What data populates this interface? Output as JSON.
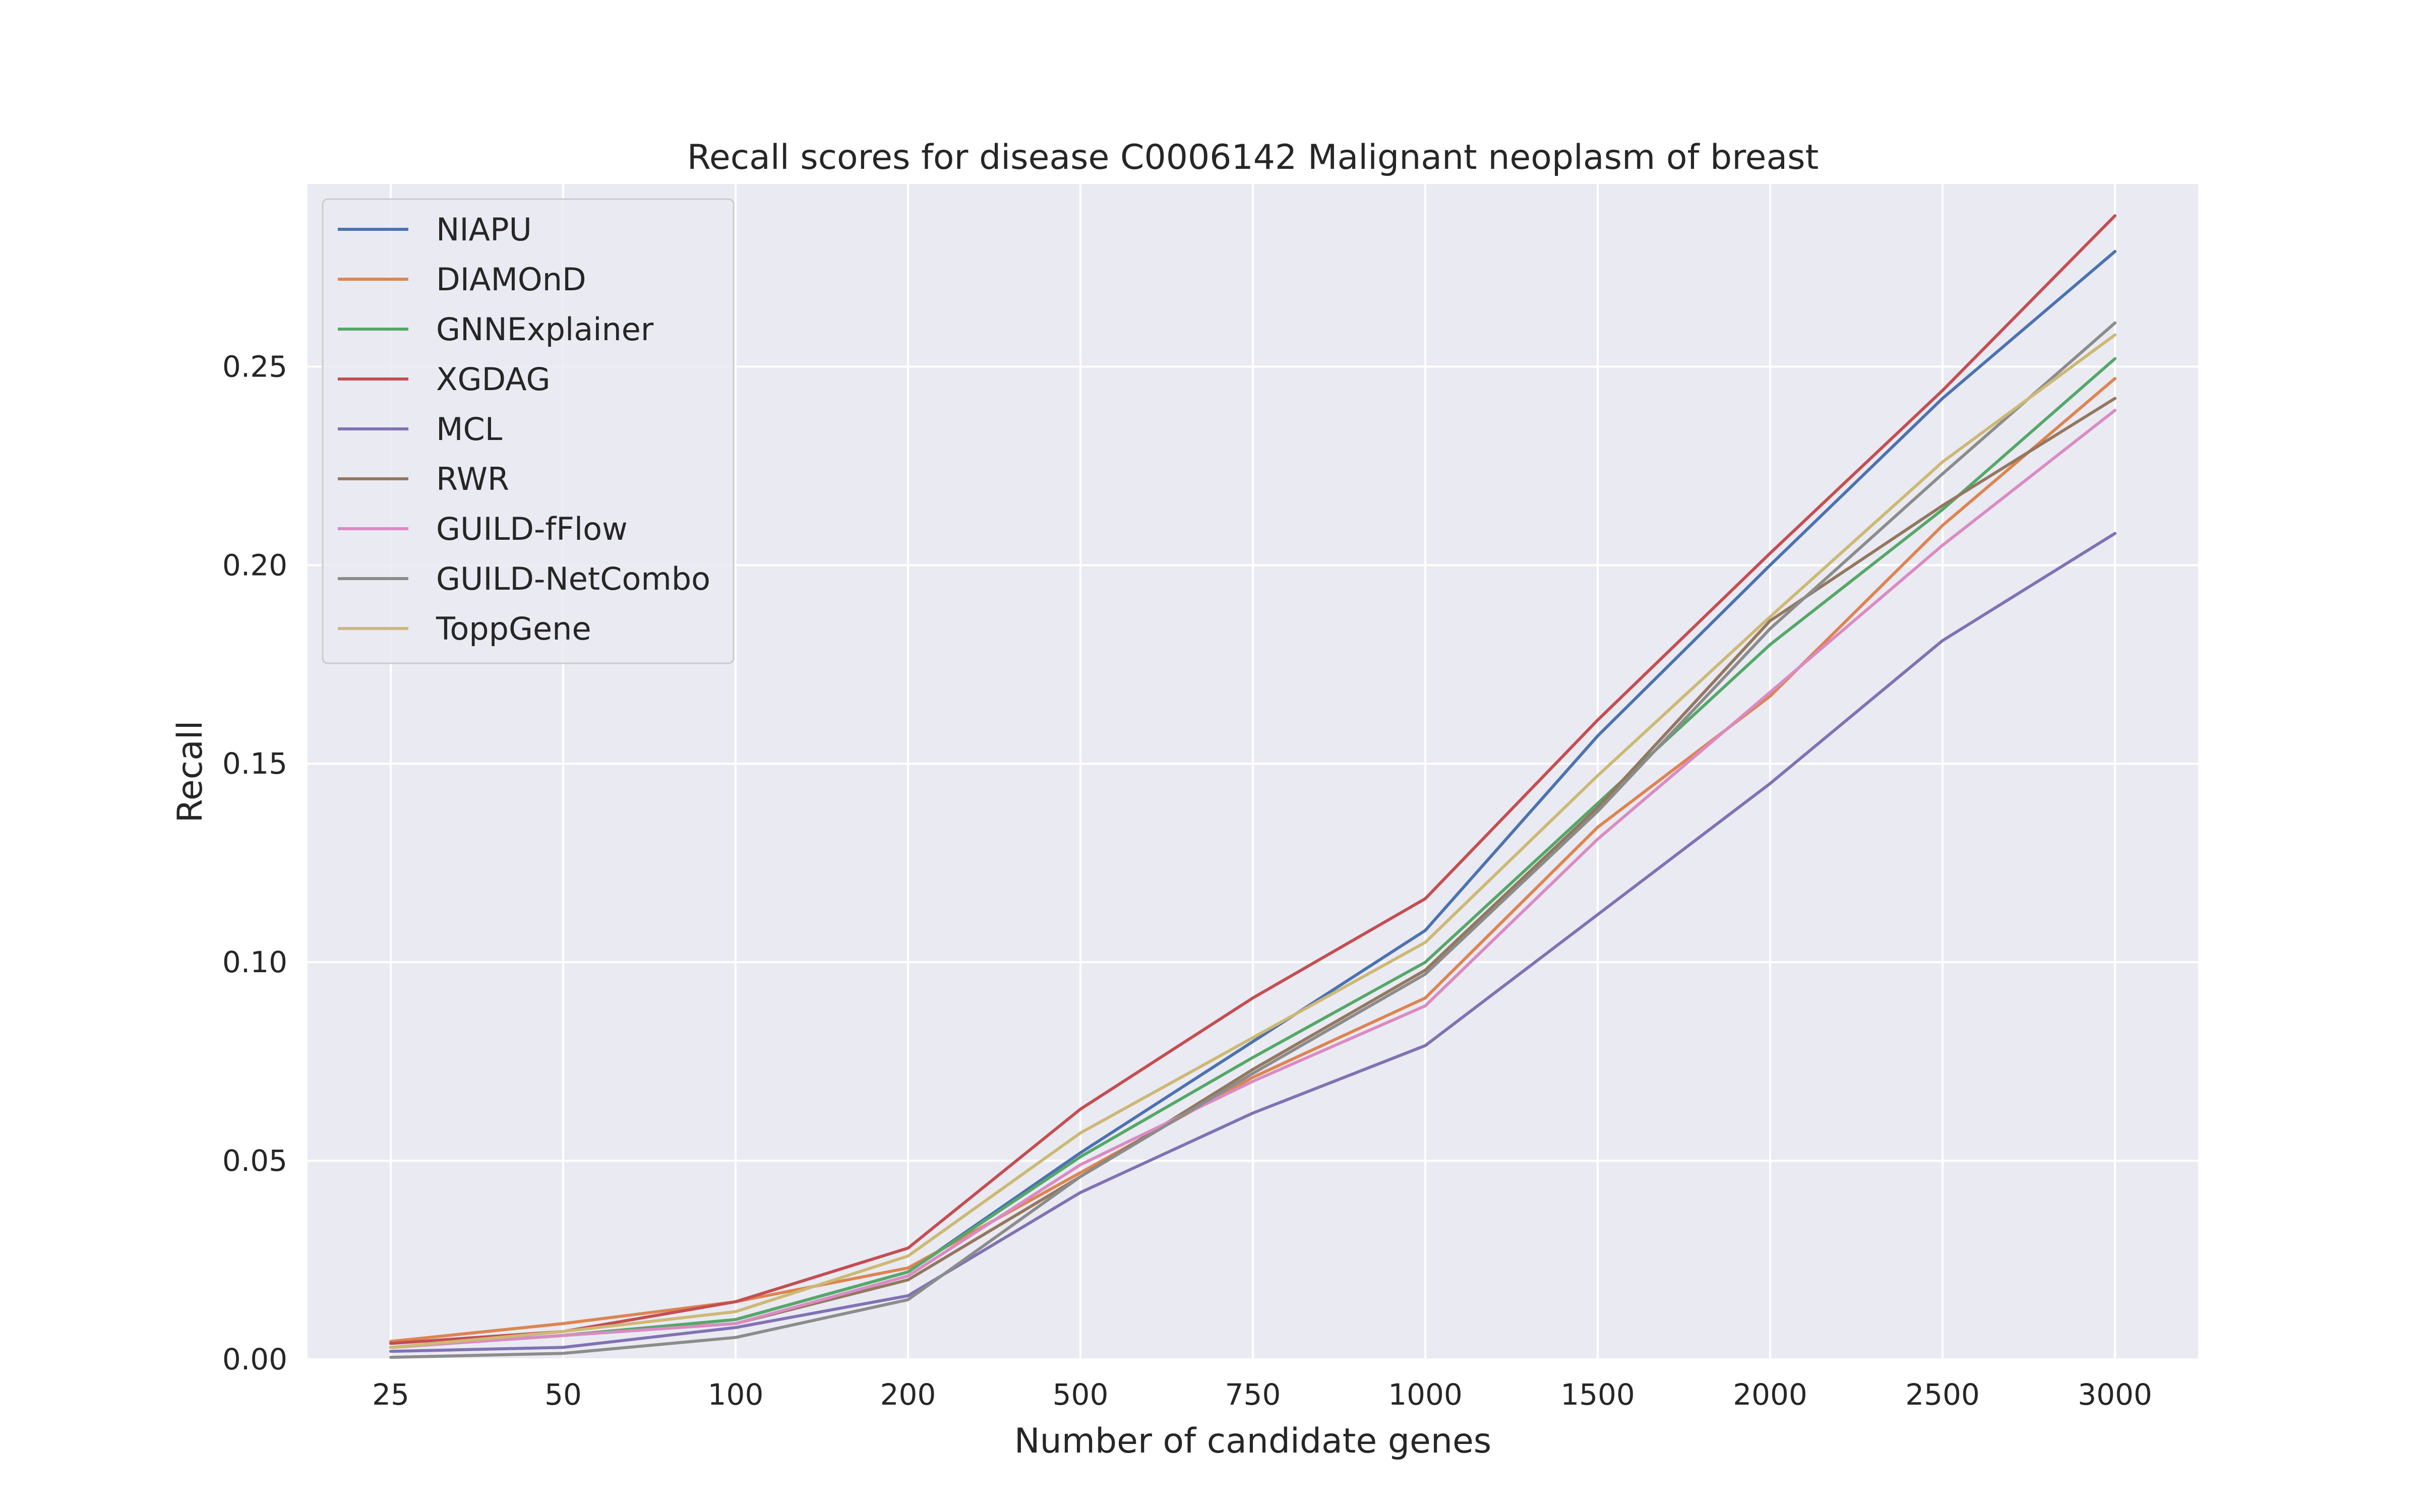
{
  "chart_data": {
    "type": "line",
    "title": "Recall scores for disease C0006142 Malignant neoplasm of breast",
    "xlabel": "Number of candidate genes",
    "ylabel": "Recall",
    "categories": [
      "25",
      "50",
      "100",
      "200",
      "500",
      "750",
      "1000",
      "1500",
      "2000",
      "2500",
      "3000"
    ],
    "ylim": [
      0,
      0.296
    ],
    "yticks": [
      "0.00",
      "0.05",
      "0.10",
      "0.15",
      "0.20",
      "0.25"
    ],
    "grid": true,
    "legend_position": "upper-left",
    "series": [
      {
        "name": "NIAPU",
        "color": "#4c72b0",
        "values": [
          0.003,
          0.006,
          0.01,
          0.022,
          0.052,
          0.08,
          0.108,
          0.157,
          0.2,
          0.242,
          0.279
        ]
      },
      {
        "name": "DIAMOnD",
        "color": "#dd8452",
        "values": [
          0.0045,
          0.009,
          0.0145,
          0.023,
          0.047,
          0.071,
          0.091,
          0.134,
          0.167,
          0.21,
          0.247
        ]
      },
      {
        "name": "GNNExplainer",
        "color": "#55a868",
        "values": [
          0.003,
          0.006,
          0.01,
          0.022,
          0.051,
          0.076,
          0.1,
          0.14,
          0.18,
          0.214,
          0.252
        ]
      },
      {
        "name": "XGDAG",
        "color": "#c44e52",
        "values": [
          0.004,
          0.007,
          0.0145,
          0.028,
          0.063,
          0.091,
          0.116,
          0.161,
          0.203,
          0.244,
          0.288
        ]
      },
      {
        "name": "MCL",
        "color": "#8172b3",
        "values": [
          0.002,
          0.003,
          0.008,
          0.016,
          0.042,
          0.062,
          0.079,
          0.112,
          0.145,
          0.181,
          0.208
        ]
      },
      {
        "name": "RWR",
        "color": "#937860",
        "values": [
          0.003,
          0.006,
          0.009,
          0.02,
          0.046,
          0.073,
          0.098,
          0.139,
          0.186,
          0.215,
          0.242
        ]
      },
      {
        "name": "GUILD-fFlow",
        "color": "#da8bc3",
        "values": [
          0.003,
          0.006,
          0.009,
          0.021,
          0.049,
          0.07,
          0.089,
          0.131,
          0.168,
          0.205,
          0.239
        ]
      },
      {
        "name": "GUILD-NetCombo",
        "color": "#8c8c8c",
        "values": [
          0.0005,
          0.0015,
          0.0055,
          0.015,
          0.046,
          0.072,
          0.097,
          0.138,
          0.184,
          0.223,
          0.261
        ]
      },
      {
        "name": "ToppGene",
        "color": "#ccb974",
        "values": [
          0.003,
          0.007,
          0.012,
          0.026,
          0.057,
          0.081,
          0.105,
          0.147,
          0.187,
          0.226,
          0.258
        ]
      }
    ]
  },
  "colors": {
    "plot_background": "#eaeaf2",
    "grid": "#ffffff",
    "text": "#262626"
  }
}
